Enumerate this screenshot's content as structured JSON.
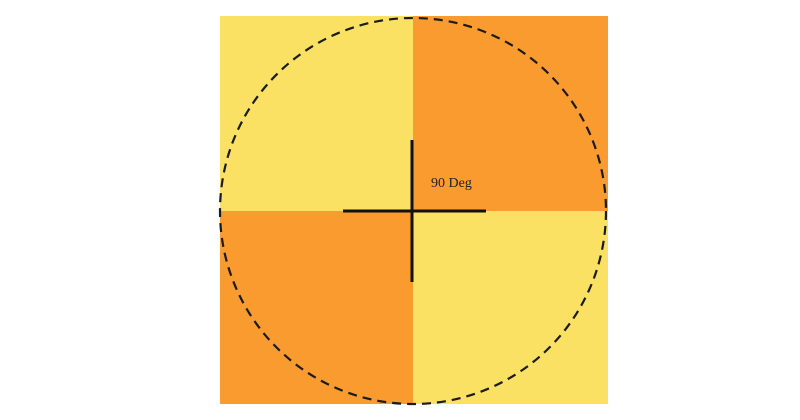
{
  "diagram": {
    "label": "90 Deg",
    "colors": {
      "light_quadrant": "#FAE063",
      "dark_quadrant": "#F99B2E",
      "circle_stroke": "#1b1b1b",
      "axis_stroke": "#111111",
      "background": "#FFFFFF"
    },
    "quadrants": [
      {
        "name": "top-left",
        "tone": "light"
      },
      {
        "name": "top-right",
        "tone": "dark"
      },
      {
        "name": "bottom-left",
        "tone": "dark"
      },
      {
        "name": "bottom-right",
        "tone": "light"
      }
    ]
  }
}
